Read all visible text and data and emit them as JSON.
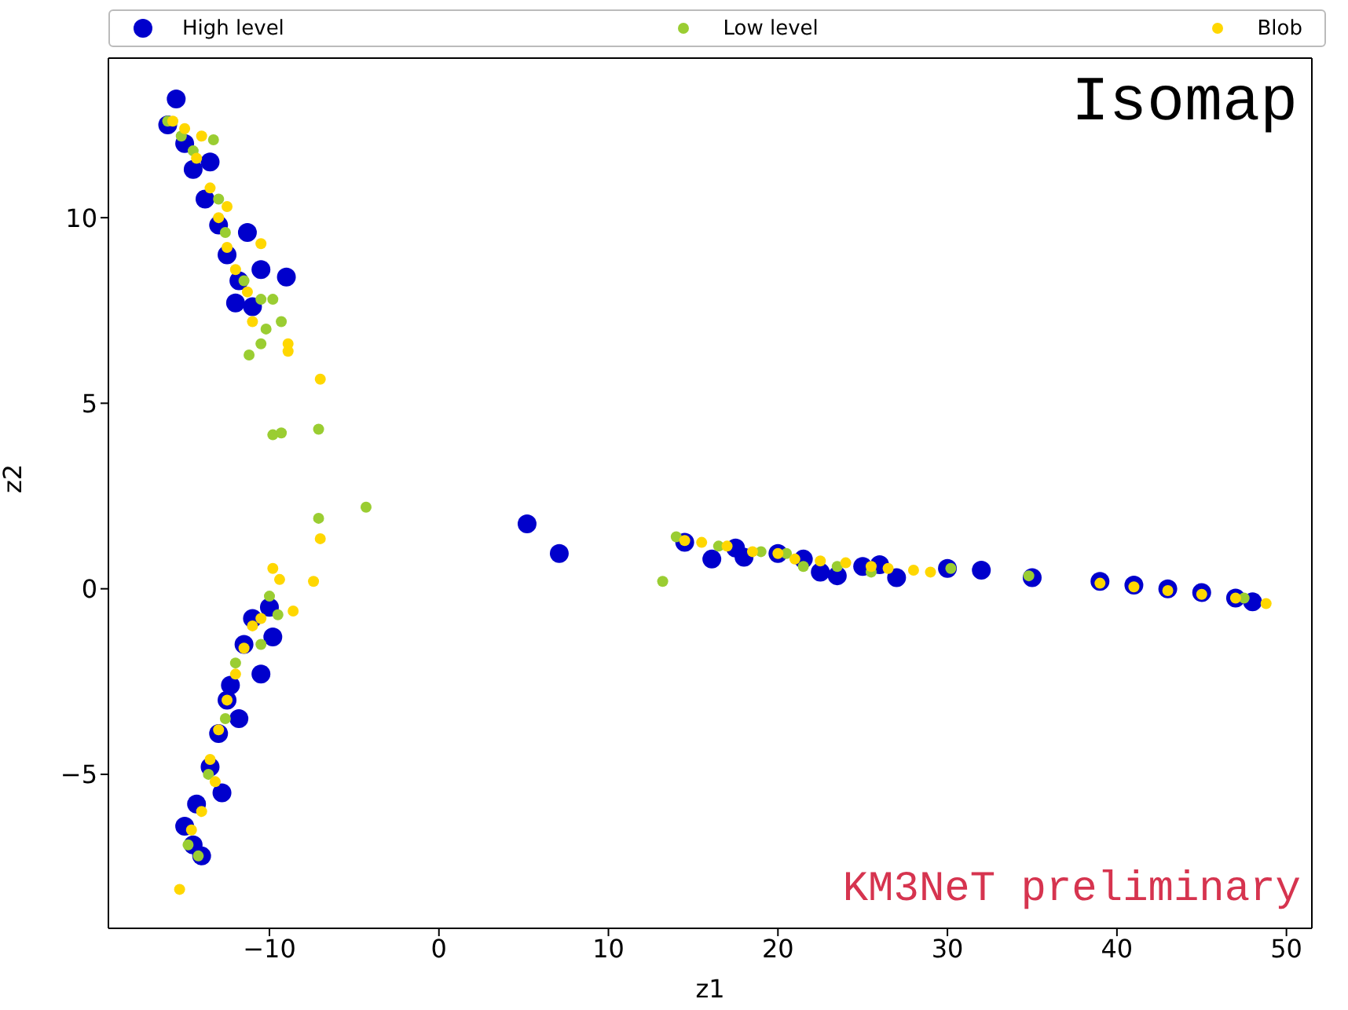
{
  "chart_data": {
    "type": "scatter",
    "xlabel": "z1",
    "ylabel": "z2",
    "xlim": [
      -19.5,
      51.5
    ],
    "ylim": [
      -9.15,
      14.3
    ],
    "xticks": [
      -10,
      0,
      10,
      20,
      30,
      40,
      50
    ],
    "yticks": [
      -5,
      0,
      5,
      10
    ],
    "grid": false,
    "legend": "top",
    "marker": "circle",
    "annotations": [
      "Isomap",
      "KM3NeT preliminary"
    ],
    "series": [
      {
        "name": "High level",
        "color": "#0000cc",
        "x": [
          -15.5,
          -16,
          -15,
          -14.5,
          -13.8,
          -13,
          -12.5,
          -11.8,
          -11,
          -12,
          -13.5,
          -11.3,
          -9,
          -10.5,
          -14.5,
          -15,
          -14,
          -14.3,
          -13.5,
          -13,
          -12.5,
          -12.3,
          -11.5,
          -11,
          -10,
          -9.8,
          -12.8,
          -11.8,
          -10.5,
          5.2,
          7.1,
          14.5,
          16.1,
          17.5,
          18,
          20,
          21.5,
          22.5,
          23.5,
          25,
          26,
          27,
          30,
          32,
          35,
          39,
          41,
          43,
          45,
          47,
          48
        ],
        "values": [
          13.2,
          12.5,
          12,
          11.3,
          10.5,
          9.8,
          9,
          8.3,
          7.6,
          7.7,
          11.5,
          9.6,
          8.4,
          8.6,
          -6.9,
          -6.4,
          -7.2,
          -5.8,
          -4.8,
          -3.9,
          -3,
          -2.6,
          -1.5,
          -0.8,
          -0.5,
          -1.3,
          -5.5,
          -3.5,
          -2.3,
          1.75,
          0.95,
          1.25,
          0.8,
          1.1,
          0.85,
          0.95,
          0.8,
          0.45,
          0.35,
          0.6,
          0.65,
          0.3,
          0.55,
          0.5,
          0.3,
          0.2,
          0.1,
          0,
          -0.1,
          -0.25,
          -0.35
        ]
      },
      {
        "name": "Low level",
        "color": "#9acd32",
        "x": [
          -16,
          -15.2,
          -14.5,
          -13.3,
          -13,
          -12.6,
          -11.5,
          -10.5,
          -10.2,
          -10.5,
          -11.2,
          -9.3,
          -9.8,
          -9.8,
          -9.3,
          -7.1,
          -7.1,
          -4.3,
          -14.8,
          -14.2,
          -13.6,
          -12.6,
          -12,
          -10.5,
          -10,
          -9.5,
          13.2,
          14,
          16.5,
          19,
          20.5,
          21.5,
          23.5,
          25.5,
          30.2,
          34.8,
          47.5
        ],
        "values": [
          12.6,
          12.2,
          11.8,
          12.1,
          10.5,
          9.6,
          8.3,
          7.8,
          7,
          6.6,
          6.3,
          7.2,
          7.8,
          4.15,
          4.2,
          4.3,
          1.9,
          2.2,
          -6.9,
          -7.2,
          -5,
          -3.5,
          -2,
          -1.5,
          -0.2,
          -0.7,
          0.2,
          1.4,
          1.15,
          1,
          0.95,
          0.6,
          0.6,
          0.45,
          0.55,
          0.35,
          -0.25
        ]
      },
      {
        "name": "Blob",
        "color": "#ffd700",
        "x": [
          -15.7,
          -15,
          -14.3,
          -14,
          -13.5,
          -13,
          -12.5,
          -12,
          -11.3,
          -11,
          -12.5,
          -10.5,
          -8.9,
          -8.9,
          -7,
          -7,
          -7.4,
          -9.8,
          -9.4,
          -8.6,
          -15.3,
          -14.6,
          -14,
          -13.5,
          -13,
          -12.5,
          -12,
          -11.5,
          -11,
          -10.5,
          -13.2,
          14.5,
          15.5,
          17,
          18.5,
          20,
          21,
          22.5,
          24,
          25.5,
          26.5,
          28,
          29,
          39,
          41,
          43,
          45,
          47,
          48.8
        ],
        "values": [
          12.6,
          12.4,
          11.6,
          12.2,
          10.8,
          10,
          9.2,
          8.6,
          8,
          7.2,
          10.3,
          9.3,
          6.6,
          6.4,
          5.65,
          1.35,
          0.2,
          0.55,
          0.25,
          -0.6,
          -8.1,
          -6.5,
          -6,
          -4.6,
          -3.8,
          -3,
          -2.3,
          -1.6,
          -1,
          -0.8,
          -5.2,
          1.3,
          1.25,
          1.15,
          1,
          0.95,
          0.8,
          0.75,
          0.7,
          0.6,
          0.55,
          0.5,
          0.45,
          0.15,
          0.05,
          -0.05,
          -0.15,
          -0.25,
          -0.4
        ]
      }
    ]
  }
}
